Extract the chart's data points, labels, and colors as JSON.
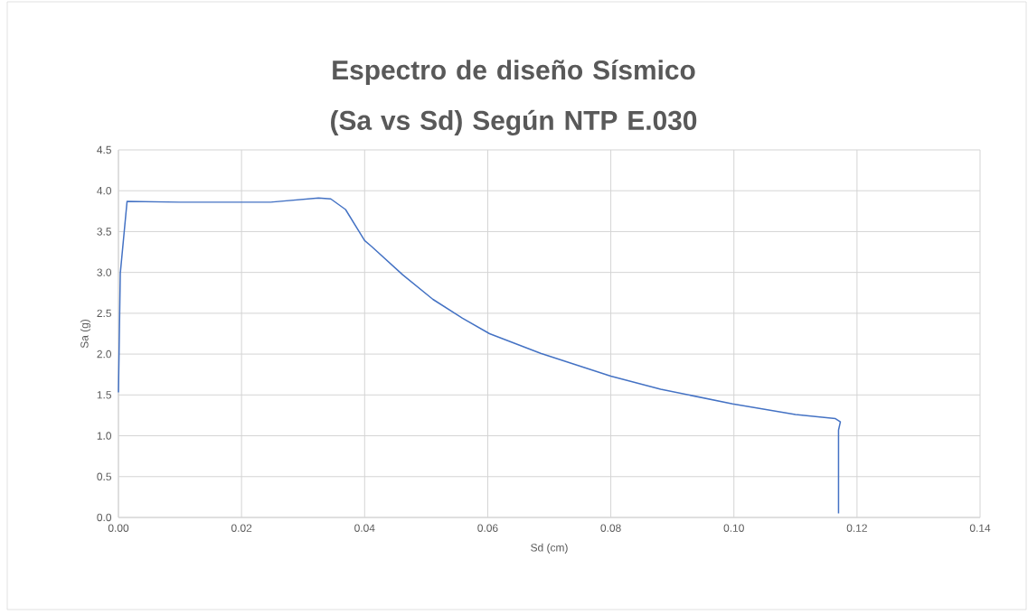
{
  "chart_data": {
    "type": "line",
    "title": "Espectro de diseño Sísmico (Sa vs Sd) Según NTP E.030",
    "xlabel": "Sd (cm)",
    "ylabel": "Sa (g)",
    "x": [
      0.0,
      0.0003,
      0.0014,
      0.01,
      0.0247,
      0.0325,
      0.0345,
      0.0369,
      0.04,
      0.0411,
      0.0462,
      0.0511,
      0.0559,
      0.0603,
      0.0686,
      0.08,
      0.0881,
      0.0998,
      0.11,
      0.1165,
      0.1173,
      0.117,
      0.117
    ],
    "series": [
      {
        "color": "#4472c4",
        "values": [
          1.53,
          2.99,
          3.87,
          3.86,
          3.86,
          3.91,
          3.9,
          3.77,
          3.39,
          3.32,
          2.97,
          2.67,
          2.44,
          2.25,
          2.01,
          1.73,
          1.57,
          1.39,
          1.26,
          1.21,
          1.17,
          1.07,
          0.05
        ]
      }
    ],
    "xlim": [
      0,
      0.14
    ],
    "ylim": [
      0,
      4.5
    ],
    "xticks": [
      {
        "value": 0,
        "label": "0.00"
      },
      {
        "value": 0.02,
        "label": "0.02"
      },
      {
        "value": 0.04,
        "label": "0.04"
      },
      {
        "value": 0.06,
        "label": "0.06"
      },
      {
        "value": 0.08,
        "label": "0.08"
      },
      {
        "value": 0.1,
        "label": "0.10"
      },
      {
        "value": 0.12,
        "label": "0.12"
      },
      {
        "value": 0.14,
        "label": "0.14"
      }
    ],
    "yticks": [
      {
        "value": 0,
        "label": "0.0"
      },
      {
        "value": 0.5,
        "label": "0.5"
      },
      {
        "value": 1,
        "label": "1.0"
      },
      {
        "value": 1.5,
        "label": "1.5"
      },
      {
        "value": 2,
        "label": "2.0"
      },
      {
        "value": 2.5,
        "label": "2.5"
      },
      {
        "value": 3,
        "label": "3.0"
      },
      {
        "value": 3.5,
        "label": "3.5"
      },
      {
        "value": 4,
        "label": "4.0"
      },
      {
        "value": 4.5,
        "label": "4.5"
      }
    ],
    "grid": true,
    "marker": "none",
    "line_style": "solid"
  }
}
